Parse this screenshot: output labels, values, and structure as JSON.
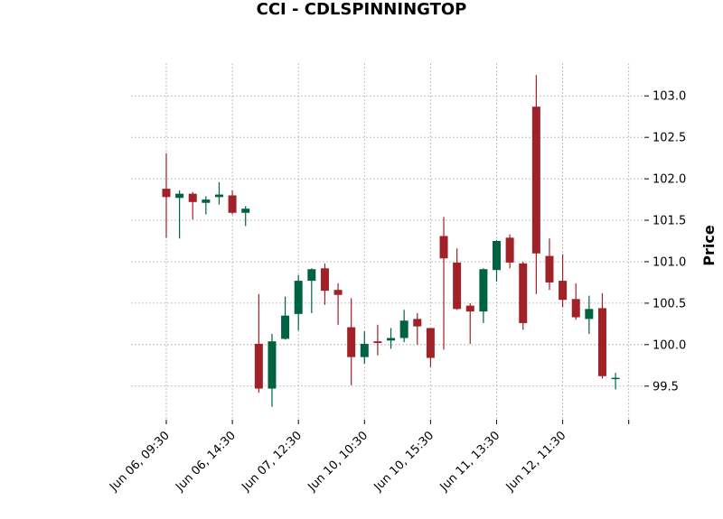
{
  "chart_data": {
    "type": "candlestick",
    "title": "CCI - CDLSPINNINGTOP",
    "ylabel": "Price",
    "xlabel": "",
    "ylim": [
      99.1,
      103.4
    ],
    "y_ticks": [
      99.5,
      100.0,
      100.5,
      101.0,
      101.5,
      102.0,
      102.5,
      103.0
    ],
    "y_tick_labels": [
      "99.5",
      "100.0",
      "100.5",
      "101.0",
      "101.5",
      "102.0",
      "102.5",
      "103.0"
    ],
    "x_tick_labels": [
      "Jun 06, 09:30",
      "Jun 06, 14:30",
      "Jun 07, 12:30",
      "Jun 10, 10:30",
      "Jun 10, 15:30",
      "Jun 11, 13:30",
      "Jun 12, 11:30",
      ""
    ],
    "x_tick_every": 5,
    "grid": true,
    "up_color": "#006340",
    "down_color": "#a02128",
    "candles": [
      {
        "o": 101.88,
        "h": 102.31,
        "l": 101.29,
        "c": 101.78
      },
      {
        "o": 101.77,
        "h": 101.86,
        "l": 101.28,
        "c": 101.82
      },
      {
        "o": 101.82,
        "h": 101.84,
        "l": 101.51,
        "c": 101.72
      },
      {
        "o": 101.71,
        "h": 101.79,
        "l": 101.57,
        "c": 101.75
      },
      {
        "o": 101.78,
        "h": 101.96,
        "l": 101.69,
        "c": 101.81
      },
      {
        "o": 101.8,
        "h": 101.86,
        "l": 101.57,
        "c": 101.59
      },
      {
        "o": 101.59,
        "h": 101.67,
        "l": 101.43,
        "c": 101.64
      },
      {
        "o": 100.01,
        "h": 100.61,
        "l": 99.42,
        "c": 99.47
      },
      {
        "o": 99.47,
        "h": 100.13,
        "l": 99.25,
        "c": 100.04
      },
      {
        "o": 100.07,
        "h": 100.58,
        "l": 100.06,
        "c": 100.35
      },
      {
        "o": 100.37,
        "h": 100.84,
        "l": 100.17,
        "c": 100.77
      },
      {
        "o": 100.77,
        "h": 100.92,
        "l": 100.38,
        "c": 100.91
      },
      {
        "o": 100.92,
        "h": 100.98,
        "l": 100.48,
        "c": 100.65
      },
      {
        "o": 100.66,
        "h": 100.74,
        "l": 100.24,
        "c": 100.6
      },
      {
        "o": 100.21,
        "h": 100.56,
        "l": 99.51,
        "c": 99.85
      },
      {
        "o": 99.85,
        "h": 100.16,
        "l": 99.77,
        "c": 100.01
      },
      {
        "o": 100.04,
        "h": 100.24,
        "l": 99.87,
        "c": 100.02
      },
      {
        "o": 100.05,
        "h": 100.2,
        "l": 99.95,
        "c": 100.08
      },
      {
        "o": 100.08,
        "h": 100.42,
        "l": 100.03,
        "c": 100.29
      },
      {
        "o": 100.31,
        "h": 100.38,
        "l": 100.0,
        "c": 100.22
      },
      {
        "o": 100.2,
        "h": 100.2,
        "l": 99.73,
        "c": 99.84
      },
      {
        "o": 101.31,
        "h": 101.54,
        "l": 99.94,
        "c": 101.04
      },
      {
        "o": 100.99,
        "h": 101.16,
        "l": 100.42,
        "c": 100.43
      },
      {
        "o": 100.47,
        "h": 100.5,
        "l": 100.01,
        "c": 100.4
      },
      {
        "o": 100.4,
        "h": 100.92,
        "l": 100.26,
        "c": 100.91
      },
      {
        "o": 100.9,
        "h": 101.26,
        "l": 100.76,
        "c": 101.25
      },
      {
        "o": 101.29,
        "h": 101.33,
        "l": 100.92,
        "c": 100.99
      },
      {
        "o": 100.98,
        "h": 101.0,
        "l": 100.18,
        "c": 100.26
      },
      {
        "o": 102.87,
        "h": 103.25,
        "l": 100.61,
        "c": 101.1
      },
      {
        "o": 101.07,
        "h": 101.28,
        "l": 100.66,
        "c": 100.75
      },
      {
        "o": 100.77,
        "h": 101.09,
        "l": 100.45,
        "c": 100.54
      },
      {
        "o": 100.55,
        "h": 100.74,
        "l": 100.3,
        "c": 100.33
      },
      {
        "o": 100.31,
        "h": 100.59,
        "l": 100.13,
        "c": 100.43
      },
      {
        "o": 100.44,
        "h": 100.62,
        "l": 99.59,
        "c": 99.62
      },
      {
        "o": 99.6,
        "h": 99.66,
        "l": 99.46,
        "c": 99.6
      }
    ]
  }
}
